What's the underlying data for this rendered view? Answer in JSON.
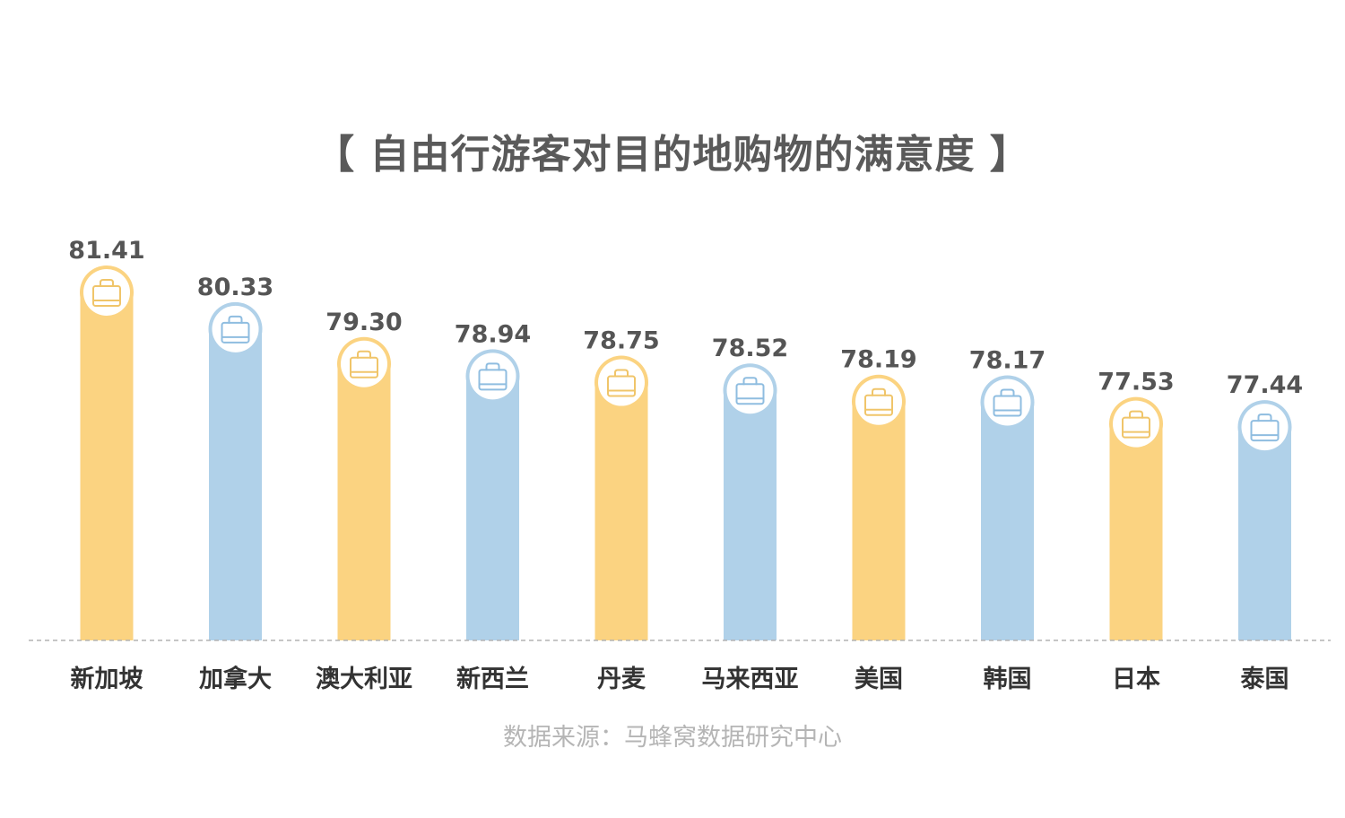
{
  "title": "【 自由行游客对目的地购物的满意度 】",
  "source": "数据来源：马蜂窝数据研究中心",
  "colors": {
    "yellow": "#fbd381",
    "blue": "#b0d1e9",
    "yellow_icon": "#f0c56a",
    "blue_icon": "#8fbde0",
    "value_text": "#555555",
    "category_text": "#333333",
    "axis_line": "#b3b3b3"
  },
  "icon": "shopping-bag-icon",
  "chart_data": {
    "type": "bar",
    "categories": [
      "新加坡",
      "加拿大",
      "澳大利亚",
      "新西兰",
      "丹麦",
      "马来西亚",
      "美国",
      "韩国",
      "日本",
      "泰国"
    ],
    "values": [
      81.41,
      80.33,
      79.3,
      78.94,
      78.75,
      78.52,
      78.19,
      78.17,
      77.53,
      77.44
    ],
    "value_labels": [
      "81.41",
      "80.33",
      "79.30",
      "78.94",
      "78.75",
      "78.52",
      "78.19",
      "78.17",
      "77.53",
      "77.44"
    ],
    "bar_colors": [
      "#fbd381",
      "#b0d1e9",
      "#fbd381",
      "#b0d1e9",
      "#fbd381",
      "#b0d1e9",
      "#fbd381",
      "#b0d1e9",
      "#fbd381",
      "#b0d1e9"
    ],
    "title": "【 自由行游客对目的地购物的满意度 】",
    "xlabel": "",
    "ylabel": "",
    "grid": false,
    "legend": "none",
    "y_axis_visible": false
  }
}
